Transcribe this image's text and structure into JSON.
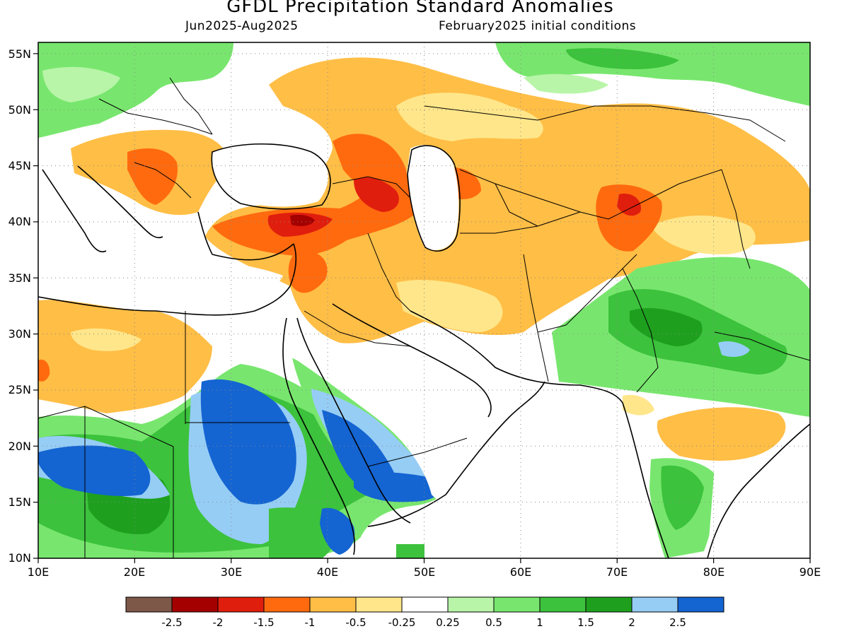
{
  "header": {
    "title": "GFDL Precipitation Standard Anomalies",
    "period": "Jun2025-Aug2025",
    "init": "February2025 initial conditions"
  },
  "axes": {
    "lon_labels": [
      "10E",
      "20E",
      "30E",
      "40E",
      "50E",
      "60E",
      "70E",
      "80E",
      "90E"
    ],
    "lat_labels": [
      "55N",
      "50N",
      "45N",
      "40N",
      "35N",
      "30N",
      "25N",
      "20N",
      "15N",
      "10N"
    ],
    "lon_range": [
      10,
      90
    ],
    "lat_range": [
      10,
      56
    ]
  },
  "legend": {
    "colors": [
      "#7d5748",
      "#a50000",
      "#e01e0d",
      "#ff6a0f",
      "#ffbe46",
      "#ffe68a",
      "#ffffff",
      "#b8f5a8",
      "#78e66e",
      "#3cc23c",
      "#1ea01e",
      "#96cdf5",
      "#1464d2"
    ],
    "labels": [
      "-2.5",
      "-2",
      "-1.5",
      "-1",
      "-0.5",
      "-0.25",
      "0.25",
      "0.5",
      "1",
      "1.5",
      "2",
      "2.5"
    ]
  }
}
